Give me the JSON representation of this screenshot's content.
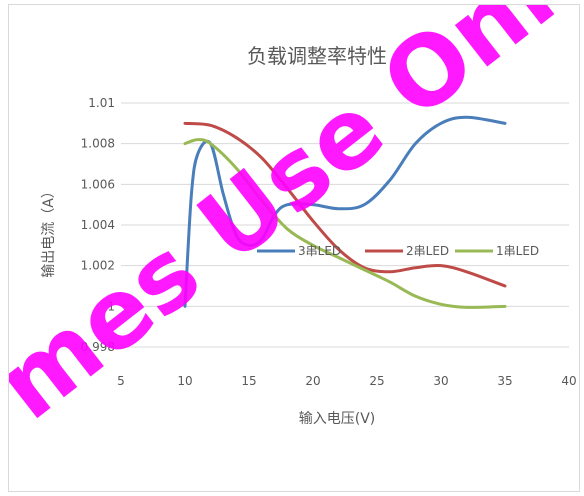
{
  "chart_data": {
    "type": "line",
    "title": "负载调整率特性",
    "xlabel": "输入电压(V)",
    "ylabel": "输出电流（A）",
    "xlim": [
      5,
      40
    ],
    "ylim": [
      0.998,
      1.01
    ],
    "x_ticks": [
      "5",
      "10",
      "15",
      "20",
      "25",
      "30",
      "35",
      "40"
    ],
    "y_ticks": [
      "0.998",
      "1",
      "1.002",
      "1.004",
      "1.006",
      "1.008",
      "1.01"
    ],
    "grid": "horizontal",
    "legend_position": "center",
    "series": [
      {
        "name": "3串LED",
        "color": "#4a7ebb",
        "points": [
          [
            10,
            1.0
          ],
          [
            10.5,
            1.0055
          ],
          [
            11,
            1.0075
          ],
          [
            12,
            1.008
          ],
          [
            13,
            1.0055
          ],
          [
            14,
            1.0035
          ],
          [
            15,
            1.003
          ],
          [
            16,
            1.0033
          ],
          [
            17,
            1.0045
          ],
          [
            18,
            1.005
          ],
          [
            20,
            1.005
          ],
          [
            22,
            1.0048
          ],
          [
            24,
            1.005
          ],
          [
            26,
            1.0062
          ],
          [
            28,
            1.008
          ],
          [
            30,
            1.009
          ],
          [
            32,
            1.0093
          ],
          [
            35,
            1.009
          ]
        ]
      },
      {
        "name": "2串LED",
        "color": "#be4b48",
        "points": [
          [
            10,
            1.009
          ],
          [
            12,
            1.0089
          ],
          [
            14,
            1.0083
          ],
          [
            16,
            1.0073
          ],
          [
            18,
            1.0058
          ],
          [
            20,
            1.0042
          ],
          [
            22,
            1.0028
          ],
          [
            24,
            1.0019
          ],
          [
            26,
            1.0017
          ],
          [
            28,
            1.0019
          ],
          [
            30,
            1.002
          ],
          [
            32,
            1.0017
          ],
          [
            35,
            1.001
          ]
        ]
      },
      {
        "name": "1串LED",
        "color": "#98b954",
        "points": [
          [
            10,
            1.008
          ],
          [
            11,
            1.0082
          ],
          [
            12,
            1.008
          ],
          [
            14,
            1.0068
          ],
          [
            16,
            1.0052
          ],
          [
            18,
            1.0038
          ],
          [
            20,
            1.003
          ],
          [
            22,
            1.0024
          ],
          [
            24,
            1.0018
          ],
          [
            26,
            1.0012
          ],
          [
            28,
            1.0005
          ],
          [
            30,
            1.0001
          ],
          [
            32,
            0.99995
          ],
          [
            35,
            1.0
          ]
        ]
      }
    ]
  },
  "watermark": {
    "text": "mes Use Onl",
    "color": "#ff00ff"
  }
}
